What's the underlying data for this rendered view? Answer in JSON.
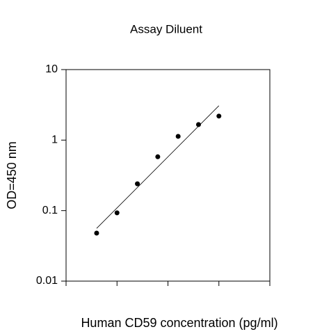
{
  "chart_data": {
    "type": "scatter",
    "title": "Assay Diluent",
    "x_label": "Human CD59 concentration (pg/ml)",
    "y_label": "OD=450 nm",
    "x": [
      0.6,
      1.0,
      1.4,
      1.8,
      2.2,
      2.6,
      3.0
    ],
    "values": [
      0.048,
      0.093,
      0.24,
      0.58,
      1.13,
      1.66,
      2.19
    ],
    "color": "#000000",
    "fit_line": {
      "x": [
        0.6,
        3.0
      ],
      "values": [
        0.056,
        3.07
      ]
    },
    "xlim": [
      0,
      4
    ],
    "xticks": [
      0,
      1,
      2,
      3,
      4
    ],
    "ylim": [
      0.01,
      10
    ],
    "yticks": [
      0.01,
      0.1,
      1,
      10
    ],
    "y_log": true,
    "grid": false
  }
}
